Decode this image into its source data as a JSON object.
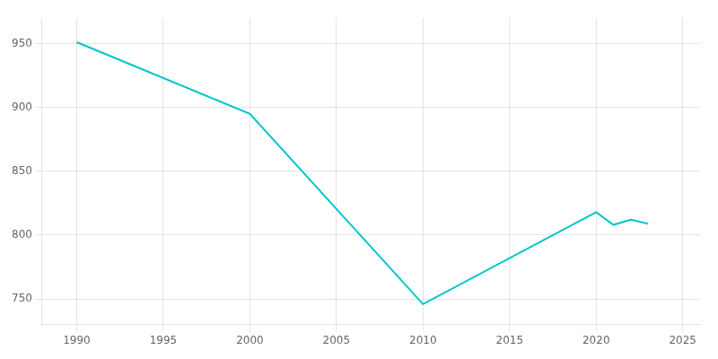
{
  "chart_data": {
    "type": "line",
    "x": [
      1990,
      2000,
      2010,
      2020,
      2021,
      2022,
      2023
    ],
    "values": [
      951,
      895,
      746,
      818,
      808,
      812,
      809
    ],
    "color": "#00c5c8",
    "xlim": [
      1988,
      2026
    ],
    "ylim": [
      730,
      970
    ],
    "xticks": [
      1990,
      1995,
      2000,
      2005,
      2010,
      2015,
      2020,
      2025
    ],
    "yticks": [
      750,
      800,
      850,
      900,
      950
    ],
    "grid": true
  }
}
